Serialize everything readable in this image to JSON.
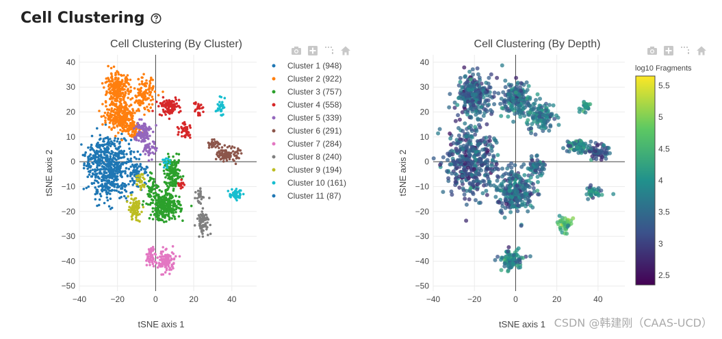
{
  "page": {
    "title": "Cell Clustering",
    "help_icon": "question-circle-icon",
    "watermark": "CSDN @韩建刚（CAAS-UCD）"
  },
  "modebar": {
    "icons": [
      "camera-icon",
      "plus-box-icon",
      "lasso-select-icon",
      "home-icon"
    ]
  },
  "chart_data": [
    {
      "id": "cluster",
      "type": "scatter",
      "title": "Cell Clustering (By Cluster)",
      "xlabel": "tSNE axis 1",
      "ylabel": "tSNE axis 2",
      "xlim": [
        -40,
        53
      ],
      "ylim": [
        -52,
        43
      ],
      "xticks": [
        -40,
        -20,
        0,
        20,
        40
      ],
      "yticks": [
        40,
        30,
        20,
        10,
        0,
        -10,
        -20,
        -30,
        -40,
        -50
      ],
      "grid": true,
      "zero_lines": true,
      "legend_position": "right",
      "series": [
        {
          "name": "Cluster 1 (948)",
          "color": "#1f77b4",
          "blobs": [
            [
              -24,
              -3,
              10,
              11,
              520
            ],
            [
              -9,
              -4,
              5,
              5,
              60
            ],
            [
              -32,
              2,
              4,
              4,
              40
            ]
          ]
        },
        {
          "name": "Cluster 2 (922)",
          "color": "#ff7f0e",
          "blobs": [
            [
              -20,
              29,
              6,
              6,
              250
            ],
            [
              -18,
              18,
              7,
              5,
              250
            ],
            [
              -6,
              27,
              5,
              6,
              120
            ],
            [
              -12,
              13,
              4,
              3,
              60
            ]
          ]
        },
        {
          "name": "Cluster 3 (757)",
          "color": "#2ca02c",
          "blobs": [
            [
              5,
              -18,
              7,
              5,
              300
            ],
            [
              9,
              -5,
              4,
              6,
              150
            ],
            [
              -2,
              -10,
              3,
              4,
              40
            ]
          ]
        },
        {
          "name": "Cluster 4 (558)",
          "color": "#d62728",
          "blobs": [
            [
              7,
              22,
              5,
              3,
              90
            ],
            [
              16,
              13,
              3,
              3,
              40
            ],
            [
              22,
              22,
              2,
              3,
              25
            ],
            [
              13,
              -9,
              1.5,
              2,
              15
            ]
          ]
        },
        {
          "name": "Cluster 5 (339)",
          "color": "#9467bd",
          "blobs": [
            [
              -7,
              12,
              4,
              4,
              110
            ],
            [
              -3,
              5,
              3,
              3,
              40
            ]
          ]
        },
        {
          "name": "Cluster 6 (291)",
          "color": "#8c564b",
          "blobs": [
            [
              38,
              3,
              5,
              2.5,
              110
            ],
            [
              30,
              7,
              3,
              1.5,
              30
            ]
          ]
        },
        {
          "name": "Cluster 7 (284)",
          "color": "#e377c2",
          "blobs": [
            [
              5,
              -40,
              5,
              4,
              120
            ],
            [
              -3,
              -38,
              2,
              4,
              40
            ]
          ]
        },
        {
          "name": "Cluster 8 (240)",
          "color": "#7f7f7f",
          "blobs": [
            [
              25,
              -24,
              3,
              4,
              80
            ],
            [
              23,
              -14,
              1.5,
              3,
              30
            ]
          ]
        },
        {
          "name": "Cluster 9 (194)",
          "color": "#bcbd22",
          "blobs": [
            [
              -11,
              -19,
              3,
              4,
              80
            ],
            [
              -8,
              -8,
              2,
              3,
              30
            ]
          ]
        },
        {
          "name": "Cluster 10 (161)",
          "color": "#17becf",
          "blobs": [
            [
              42,
              -13,
              3,
              2,
              40
            ],
            [
              34,
              22,
              2,
              3,
              30
            ],
            [
              5,
              0,
              2,
              2,
              15
            ]
          ]
        },
        {
          "name": "Cluster 11 (87)",
          "color": "#1f77b4",
          "blobs": [
            [
              -35,
              -1,
              2,
              2,
              15
            ],
            [
              -26,
              8,
              3,
              2,
              15
            ]
          ]
        }
      ]
    },
    {
      "id": "depth",
      "type": "scatter",
      "title": "Cell Clustering (By Depth)",
      "xlabel": "tSNE axis 1",
      "ylabel": "tSNE axis 2",
      "xlim": [
        -40,
        53
      ],
      "ylim": [
        -52,
        43
      ],
      "xticks": [
        -40,
        -20,
        0,
        20,
        40
      ],
      "yticks": [
        40,
        30,
        20,
        10,
        0,
        -10,
        -20,
        -30,
        -40,
        -50
      ],
      "grid": true,
      "zero_lines": true,
      "colorbar": {
        "title": "log10 Fragments",
        "range": [
          2.35,
          5.65
        ],
        "ticks": [
          5.5,
          5,
          4.5,
          4,
          3.5,
          3,
          2.5
        ],
        "colorscale": [
          "#440154",
          "#3b528b",
          "#21918c",
          "#5ec962",
          "#fde725"
        ]
      },
      "blobs": [
        [
          -22,
          0,
          11,
          13,
          420,
          3.3
        ],
        [
          -20,
          27,
          8,
          7,
          260,
          3.4
        ],
        [
          0,
          25,
          6,
          7,
          180,
          3.6
        ],
        [
          0,
          -12,
          8,
          8,
          260,
          3.5
        ],
        [
          12,
          18,
          6,
          5,
          120,
          3.7
        ],
        [
          30,
          6,
          5,
          3,
          80,
          3.8
        ],
        [
          40,
          4,
          4,
          2.5,
          70,
          3.2
        ],
        [
          24,
          -25,
          3,
          3,
          40,
          4.6
        ],
        [
          -2,
          -40,
          6,
          4,
          90,
          3.8
        ],
        [
          38,
          -12,
          4,
          2,
          40,
          3.9
        ],
        [
          34,
          22,
          2,
          3,
          25,
          3.9
        ],
        [
          10,
          -2,
          4,
          3,
          60,
          3.5
        ]
      ]
    }
  ]
}
